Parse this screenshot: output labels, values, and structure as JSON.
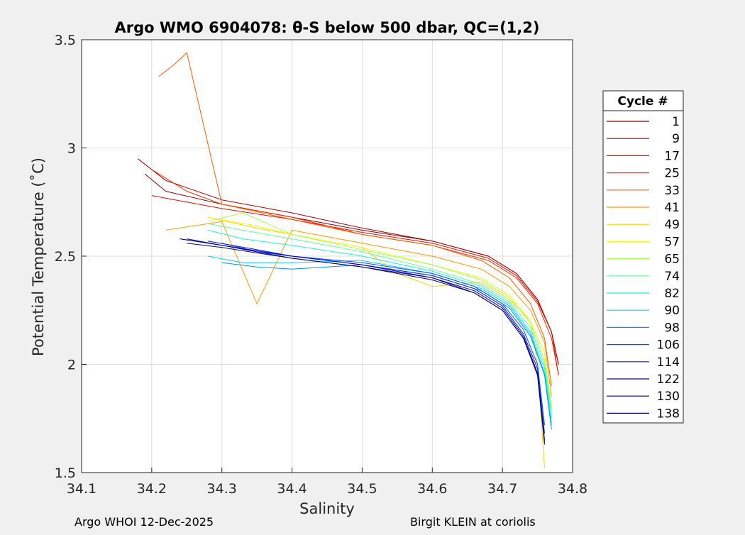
{
  "chart_data": {
    "type": "line",
    "title": "Argo WMO 6904078: θ-S below 500 dbar,  QC=(1,2)",
    "xlabel": "Salinity",
    "ylabel": "Potential Temperature (˚C)",
    "xlim": [
      34.1,
      34.8
    ],
    "ylim": [
      1.5,
      3.5
    ],
    "x_ticks": [
      34.1,
      34.2,
      34.3,
      34.4,
      34.5,
      34.6,
      34.7,
      34.8
    ],
    "x_tick_labels": [
      "34.1",
      "34.2",
      "34.3",
      "34.4",
      "34.5",
      "34.6",
      "34.7",
      "34.8"
    ],
    "y_ticks": [
      1.5,
      2,
      2.5,
      3,
      3.5
    ],
    "y_tick_labels": [
      "1.5",
      "2",
      "2.5",
      "3",
      "3.5"
    ],
    "grid": true,
    "legend": {
      "title": "Cycle #",
      "placement": "outside-right",
      "entries": [
        {
          "label": "1",
          "color": "#800000"
        },
        {
          "label": "9",
          "color": "#b00000"
        },
        {
          "label": "17",
          "color": "#e01000"
        },
        {
          "label": "25",
          "color": "#ff2a00"
        },
        {
          "label": "33",
          "color": "#ff5a00"
        },
        {
          "label": "41",
          "color": "#ff9a00"
        },
        {
          "label": "49",
          "color": "#ffd000"
        },
        {
          "label": "57",
          "color": "#e8ff10"
        },
        {
          "label": "65",
          "color": "#a8ff50"
        },
        {
          "label": "74",
          "color": "#60ff98"
        },
        {
          "label": "82",
          "color": "#20f0d8"
        },
        {
          "label": "90",
          "color": "#00d0ff"
        },
        {
          "label": "98",
          "color": "#0090ff"
        },
        {
          "label": "106",
          "color": "#0050ff"
        },
        {
          "label": "114",
          "color": "#0018f0"
        },
        {
          "label": "122",
          "color": "#0000c0"
        },
        {
          "label": "130",
          "color": "#000090"
        },
        {
          "label": "138",
          "color": "#00006e"
        }
      ]
    },
    "series": [
      {
        "name": "1",
        "color": "#800000",
        "x": [
          34.19,
          34.22,
          34.3,
          34.4,
          34.5,
          34.6,
          34.68,
          34.72,
          34.75,
          34.77,
          34.78
        ],
        "y": [
          2.88,
          2.8,
          2.74,
          2.68,
          2.62,
          2.57,
          2.5,
          2.42,
          2.3,
          2.15,
          2.0
        ]
      },
      {
        "name": "9",
        "color": "#b00000",
        "x": [
          34.18,
          34.22,
          34.3,
          34.4,
          34.5,
          34.6,
          34.68,
          34.72,
          34.75,
          34.77,
          34.78
        ],
        "y": [
          2.95,
          2.85,
          2.76,
          2.7,
          2.63,
          2.57,
          2.5,
          2.42,
          2.3,
          2.15,
          2.0
        ]
      },
      {
        "name": "17",
        "color": "#e01000",
        "x": [
          34.2,
          34.25,
          34.3,
          34.4,
          34.5,
          34.6,
          34.68,
          34.72,
          34.75,
          34.77,
          34.78
        ],
        "y": [
          2.78,
          2.75,
          2.72,
          2.67,
          2.61,
          2.56,
          2.49,
          2.41,
          2.29,
          2.15,
          1.95
        ]
      },
      {
        "name": "25",
        "color": "#ff2a00",
        "x": [
          34.2,
          34.25,
          34.3,
          34.4,
          34.5,
          34.6,
          34.68,
          34.72,
          34.75,
          34.77,
          34.78
        ],
        "y": [
          2.9,
          2.8,
          2.74,
          2.68,
          2.6,
          2.55,
          2.48,
          2.4,
          2.28,
          2.12,
          1.95
        ]
      },
      {
        "name": "33",
        "color": "#ff5a00",
        "x": [
          34.21,
          34.23,
          34.25,
          34.3,
          34.4,
          34.5,
          34.6,
          34.67,
          34.71,
          34.74,
          34.76,
          34.77
        ],
        "y": [
          3.33,
          3.38,
          3.44,
          2.74,
          2.67,
          2.6,
          2.55,
          2.48,
          2.4,
          2.28,
          2.12,
          1.9
        ]
      },
      {
        "name": "41",
        "color": "#ff9a00",
        "x": [
          34.22,
          34.3,
          34.35,
          34.4,
          34.5,
          34.6,
          34.67,
          34.71,
          34.74,
          34.76,
          34.77
        ],
        "y": [
          2.62,
          2.66,
          2.28,
          2.62,
          2.56,
          2.5,
          2.44,
          2.36,
          2.25,
          2.1,
          1.85
        ]
      },
      {
        "name": "49",
        "color": "#ffd000",
        "x": [
          34.28,
          34.35,
          34.4,
          34.5,
          34.55,
          34.6,
          34.67,
          34.71,
          34.74,
          34.75,
          34.76
        ],
        "y": [
          2.68,
          2.63,
          2.6,
          2.54,
          2.42,
          2.36,
          2.38,
          2.3,
          2.2,
          2.0,
          1.52
        ]
      },
      {
        "name": "57",
        "color": "#e8ff10",
        "x": [
          34.28,
          34.35,
          34.4,
          34.5,
          34.6,
          34.67,
          34.71,
          34.74,
          34.76,
          34.77
        ],
        "y": [
          2.68,
          2.64,
          2.6,
          2.54,
          2.46,
          2.4,
          2.32,
          2.2,
          2.05,
          1.8
        ]
      },
      {
        "name": "65",
        "color": "#a8ff50",
        "x": [
          34.28,
          34.33,
          34.4,
          34.5,
          34.6,
          34.67,
          34.71,
          34.74,
          34.76,
          34.77
        ],
        "y": [
          2.66,
          2.7,
          2.6,
          2.53,
          2.46,
          2.39,
          2.31,
          2.19,
          2.02,
          1.8
        ]
      },
      {
        "name": "74",
        "color": "#60ff98",
        "x": [
          34.28,
          34.33,
          34.4,
          34.5,
          34.6,
          34.67,
          34.71,
          34.74,
          34.76,
          34.77
        ],
        "y": [
          2.65,
          2.62,
          2.58,
          2.52,
          2.44,
          2.37,
          2.29,
          2.17,
          2.0,
          1.78
        ]
      },
      {
        "name": "82",
        "color": "#20f0d8",
        "x": [
          34.28,
          34.33,
          34.4,
          34.5,
          34.6,
          34.67,
          34.71,
          34.74,
          34.76,
          34.77
        ],
        "y": [
          2.62,
          2.58,
          2.55,
          2.5,
          2.43,
          2.36,
          2.28,
          2.15,
          1.98,
          1.75
        ]
      },
      {
        "name": "90",
        "color": "#00d0ff",
        "x": [
          34.28,
          34.33,
          34.4,
          34.5,
          34.6,
          34.67,
          34.71,
          34.74,
          34.76,
          34.77
        ],
        "y": [
          2.5,
          2.47,
          2.47,
          2.48,
          2.42,
          2.35,
          2.27,
          2.14,
          1.96,
          1.72
        ]
      },
      {
        "name": "98",
        "color": "#0090ff",
        "x": [
          34.3,
          34.35,
          34.4,
          34.5,
          34.6,
          34.67,
          34.71,
          34.74,
          34.76,
          34.77
        ],
        "y": [
          2.47,
          2.45,
          2.44,
          2.46,
          2.41,
          2.34,
          2.26,
          2.13,
          1.95,
          1.7
        ]
      },
      {
        "name": "106",
        "color": "#0050ff",
        "x": [
          34.3,
          34.35,
          34.4,
          34.5,
          34.6,
          34.66,
          34.7,
          34.73,
          34.75,
          34.76
        ],
        "y": [
          2.56,
          2.52,
          2.5,
          2.47,
          2.42,
          2.36,
          2.28,
          2.16,
          2.0,
          1.72
        ]
      },
      {
        "name": "114",
        "color": "#0018f0",
        "x": [
          34.28,
          34.35,
          34.4,
          34.5,
          34.6,
          34.66,
          34.7,
          34.73,
          34.75,
          34.76
        ],
        "y": [
          2.57,
          2.53,
          2.5,
          2.46,
          2.41,
          2.35,
          2.27,
          2.14,
          1.98,
          1.68
        ]
      },
      {
        "name": "122",
        "color": "#0000c0",
        "x": [
          34.25,
          34.3,
          34.4,
          34.5,
          34.6,
          34.66,
          34.7,
          34.73,
          34.75,
          34.76
        ],
        "y": [
          2.58,
          2.55,
          2.5,
          2.46,
          2.4,
          2.34,
          2.26,
          2.13,
          1.96,
          1.65
        ]
      },
      {
        "name": "130",
        "color": "#000090",
        "x": [
          34.25,
          34.3,
          34.4,
          34.5,
          34.6,
          34.66,
          34.7,
          34.73,
          34.75,
          34.76
        ],
        "y": [
          2.56,
          2.54,
          2.49,
          2.45,
          2.4,
          2.33,
          2.25,
          2.12,
          1.95,
          1.64
        ]
      },
      {
        "name": "138",
        "color": "#00006e",
        "x": [
          34.24,
          34.3,
          34.4,
          34.5,
          34.6,
          34.66,
          34.7,
          34.73,
          34.75,
          34.76
        ],
        "y": [
          2.58,
          2.55,
          2.49,
          2.45,
          2.39,
          2.33,
          2.25,
          2.12,
          1.95,
          1.63
        ]
      }
    ]
  },
  "footer": {
    "left": "Argo WHOI 12-Dec-2025",
    "right": "Birgit KLEIN at coriolis"
  }
}
